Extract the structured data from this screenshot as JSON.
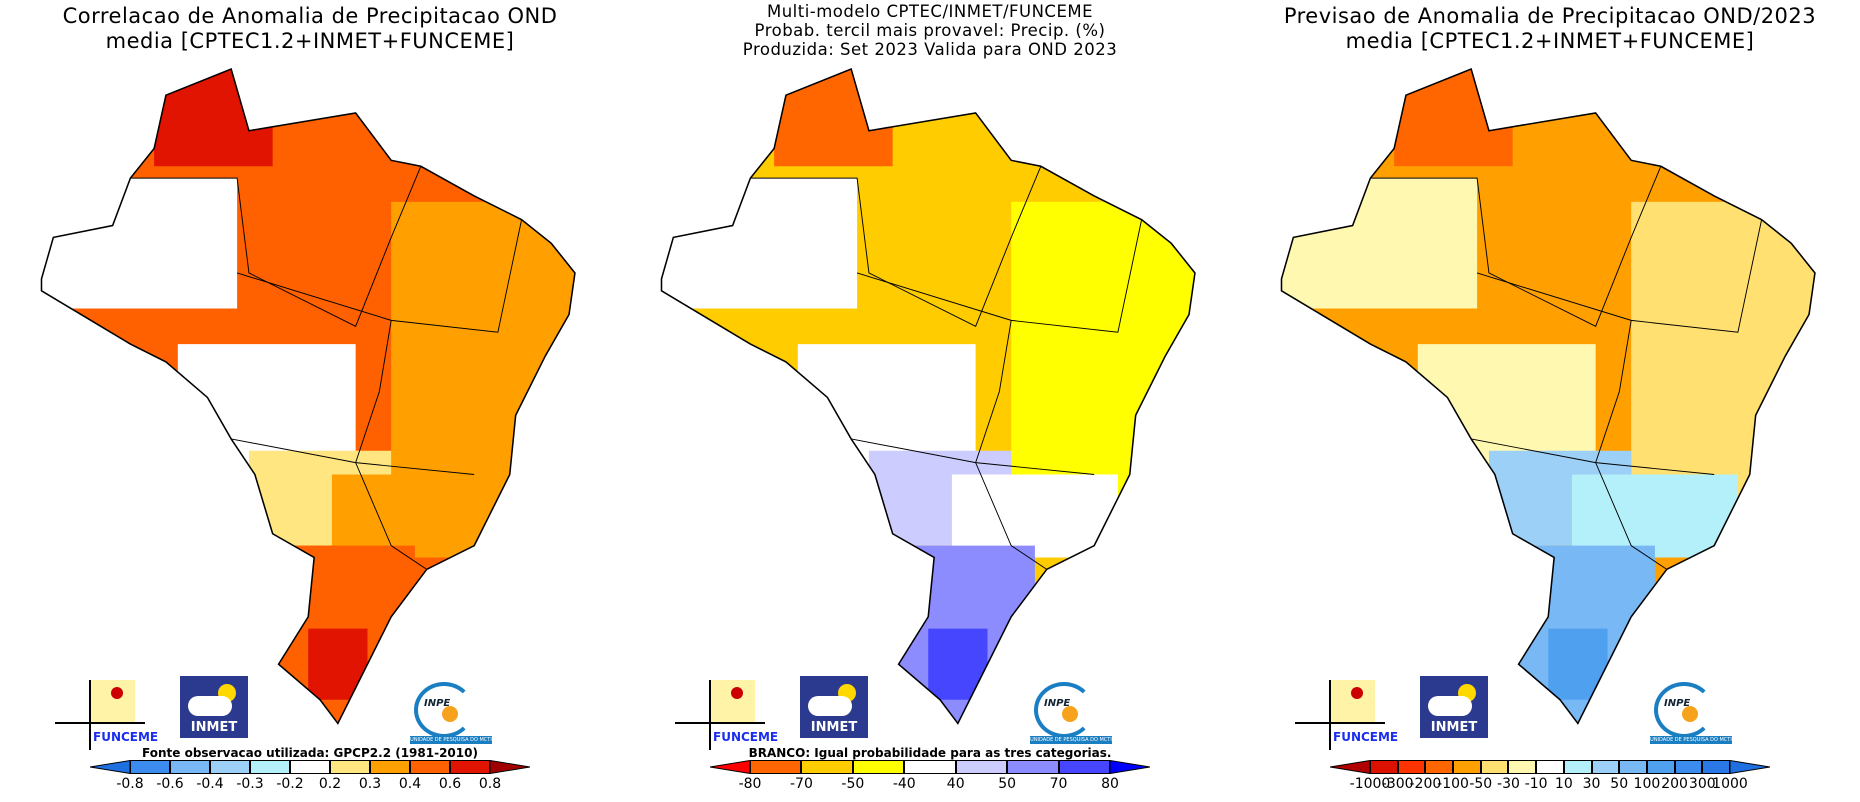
{
  "panels": [
    {
      "title_lines": [
        "Correlacao de Anomalia de Precipitacao OND",
        "media [CPTEC1.2+INMET+FUNCEME]"
      ],
      "note": "Fonte observacao utilizada: GPCP2.2 (1981-2010)",
      "colorbar": {
        "labels": [
          "-0.8",
          "-0.6",
          "-0.4",
          "-0.3",
          "-0.2",
          "0.2",
          "0.3",
          "0.4",
          "0.6",
          "0.8"
        ],
        "colors": [
          "#3c8cf0",
          "#78b8f5",
          "#9dd0f7",
          "#b4f0fa",
          "#ffffff",
          "#ffe680",
          "#ffa000",
          "#ff6000",
          "#e01400"
        ],
        "left_arrow": "#1e6fe0",
        "right_arrow": "#a00000"
      }
    },
    {
      "title_lines": [
        "Multi-modelo CPTEC/INMET/FUNCEME",
        "Probab. tercil mais provavel: Precip. (%)",
        "Produzida: Set 2023  Valida para OND 2023"
      ],
      "note": "BRANCO: Igual probabilidade para as tres categorias.",
      "colorbar": {
        "labels": [
          "-80",
          "-70",
          "-50",
          "-40",
          "40",
          "50",
          "70",
          "80"
        ],
        "colors": [
          "#ff6600",
          "#ffcc00",
          "#ffff00",
          "#ffffff",
          "#ccccff",
          "#8c8cff",
          "#4646ff"
        ],
        "left_arrow": "#ff0000",
        "right_arrow": "#0000ff"
      }
    },
    {
      "title_lines": [
        "Previsao de Anomalia de Precipitacao OND/2023",
        "media [CPTEC1.2+INMET+FUNCEME]"
      ],
      "note": "",
      "colorbar": {
        "labels": [
          "-1000",
          "-300",
          "-200",
          "-100",
          "-50",
          "-30",
          "-10",
          "10",
          "30",
          "50",
          "100",
          "200",
          "300",
          "1000"
        ],
        "colors": [
          "#dd1100",
          "#ff3300",
          "#ff6600",
          "#ffa000",
          "#ffe070",
          "#fff8b0",
          "#ffffff",
          "#b4f0fa",
          "#9dd0f7",
          "#78b8f5",
          "#50a0f0",
          "#3c8cf0",
          "#2a78e8"
        ],
        "left_arrow": "#b00000",
        "right_arrow": "#1e6fe0"
      }
    }
  ],
  "logos": {
    "funceme": "FUNCEME",
    "inmet": "INMET",
    "inpe": "INPE",
    "inpe_sub": "UNIDADE DE PESQUISA DO MCTI"
  },
  "map_fills": [
    {
      "north": "#ff6000",
      "northwest": "#e01400",
      "east": "#ffa000",
      "west": "#ffffff",
      "center": "#ffffff",
      "southeast": "#ffa000",
      "south": "#ff6000",
      "southtip": "#e01400",
      "rim": "#ffe680"
    },
    {
      "north": "#ffcc00",
      "northwest": "#ff6600",
      "east": "#ffff00",
      "west": "#ffffff",
      "center": "#ffffff",
      "southeast": "#ffffff",
      "south": "#8c8cff",
      "southtip": "#4646ff",
      "rim": "#ccccff"
    },
    {
      "north": "#ffa000",
      "northwest": "#ff6600",
      "east": "#ffe070",
      "west": "#fff8b0",
      "center": "#fff8b0",
      "southeast": "#b4f0fa",
      "south": "#78b8f5",
      "southtip": "#50a0f0",
      "rim": "#9dd0f7"
    }
  ]
}
